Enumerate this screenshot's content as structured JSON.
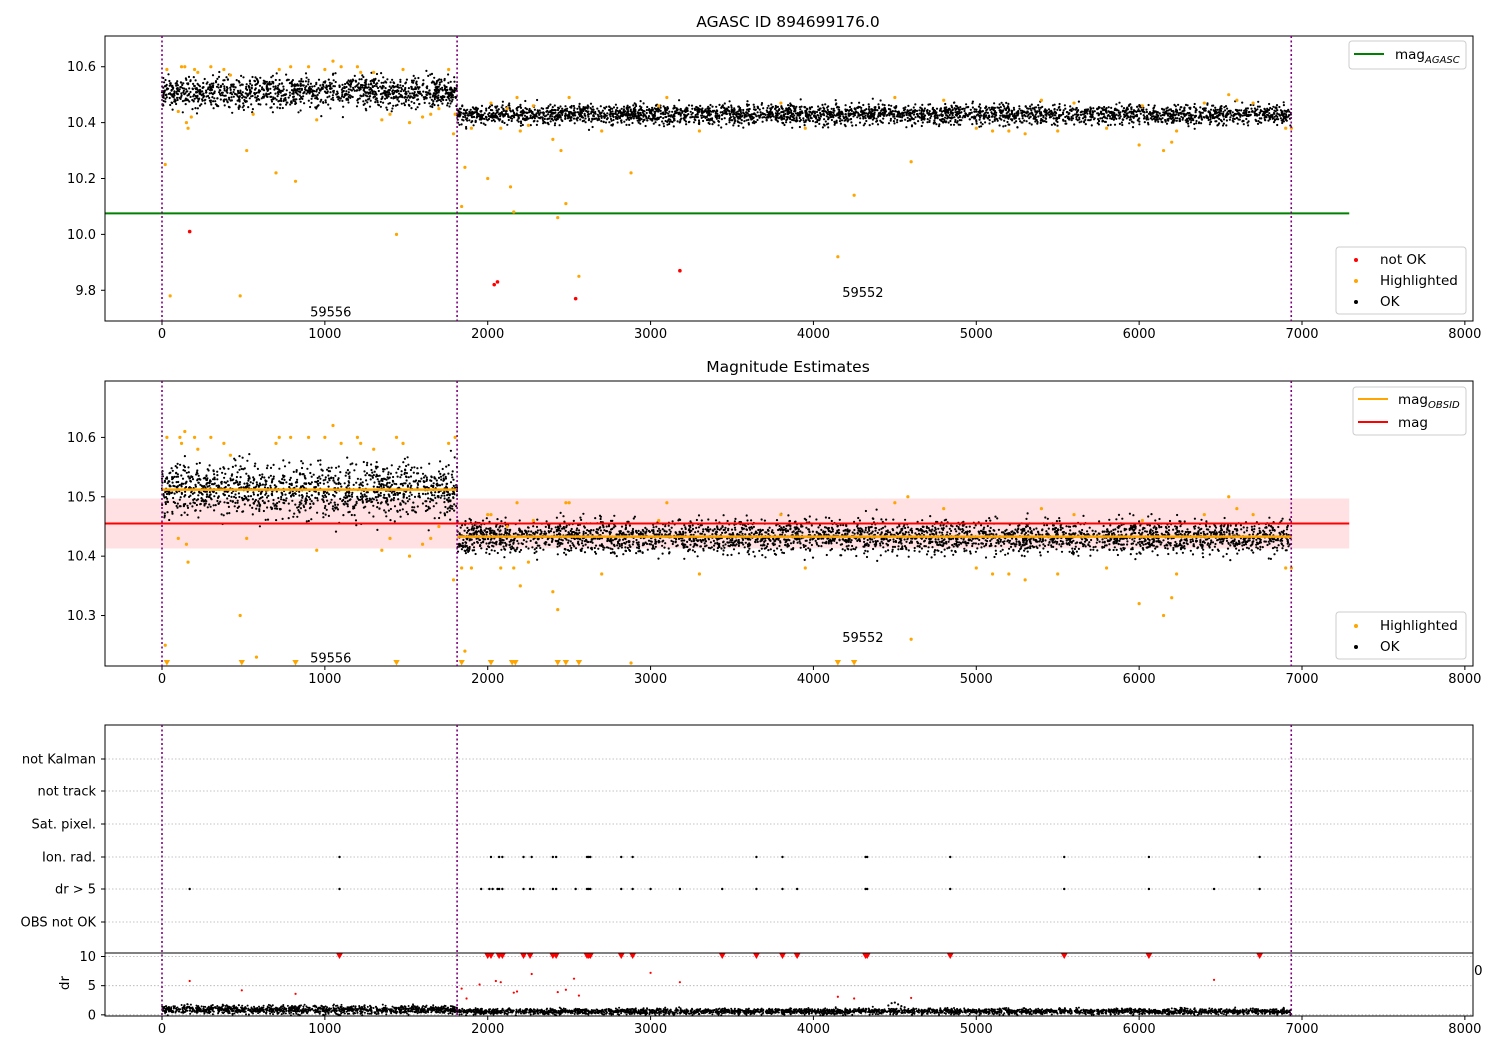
{
  "chart_data": [
    {
      "type": "scatter",
      "title": "AGASC ID 894699176.0",
      "xlabel": "",
      "ylabel": "",
      "xlim": [
        -350,
        8050
      ],
      "ylim": [
        9.69,
        10.71
      ],
      "xticks": [
        0,
        1000,
        2000,
        3000,
        4000,
        5000,
        6000,
        7000,
        8000
      ],
      "xtick_labels": [
        "0",
        "1000",
        "2000",
        "3000",
        "4000",
        "5000",
        "6000",
        "7000",
        "8000"
      ],
      "yticks": [
        9.8,
        10.0,
        10.2,
        10.4,
        10.6
      ],
      "ytick_labels": [
        "9.8",
        "10.0",
        "10.2",
        "10.4",
        "10.6"
      ],
      "grid": false,
      "vlines": [
        0,
        1812,
        6934
      ],
      "obsid_labels": [
        {
          "x": 760,
          "y": 9.72,
          "text": "59556"
        },
        {
          "x": 4230,
          "y": 9.79,
          "text": "59552"
        }
      ],
      "ok_bands": [
        {
          "x0": 0,
          "x1": 1812,
          "center": 10.51,
          "spread": 0.04,
          "n": 1300
        },
        {
          "x0": 1812,
          "x1": 6934,
          "center": 10.43,
          "spread": 0.025,
          "n": 3300
        }
      ],
      "series": [
        {
          "name": "mag_AGASC",
          "type": "line",
          "color": "#008000",
          "x": [
            -350,
            7290
          ],
          "y": [
            10.075,
            10.075
          ]
        },
        {
          "name": "not OK",
          "color": "#ff0000",
          "x": [
            170,
            2040,
            2060,
            2540,
            3180
          ],
          "y": [
            10.01,
            9.82,
            9.83,
            9.77,
            9.87
          ]
        },
        {
          "name": "Highlighted",
          "color": "#ffa500",
          "x": [
            20,
            30,
            50,
            100,
            120,
            140,
            150,
            160,
            180,
            200,
            220,
            300,
            380,
            420,
            480,
            520,
            560,
            700,
            720,
            790,
            820,
            900,
            950,
            1000,
            1050,
            1100,
            1200,
            1220,
            1300,
            1350,
            1400,
            1440,
            1480,
            1520,
            1600,
            1650,
            1700,
            1760,
            1790,
            1800,
            1840,
            1860,
            1900,
            2000,
            2020,
            2080,
            2120,
            2140,
            2160,
            2180,
            2200,
            2250,
            2280,
            2400,
            2430,
            2450,
            2480,
            2500,
            2560,
            2700,
            2880,
            3050,
            3100,
            3300,
            3800,
            3950,
            4150,
            4250,
            4500,
            4600,
            4800,
            5000,
            5100,
            5200,
            5300,
            5400,
            5500,
            5600,
            5800,
            6000,
            6020,
            6150,
            6200,
            6230,
            6400,
            6550,
            6600,
            6700,
            6900,
            6935
          ],
          "y": [
            10.25,
            10.59,
            9.78,
            10.44,
            10.6,
            10.6,
            10.4,
            10.38,
            10.42,
            10.59,
            10.58,
            10.6,
            10.59,
            10.57,
            9.78,
            10.3,
            10.43,
            10.22,
            10.59,
            10.6,
            10.19,
            10.6,
            10.41,
            10.59,
            10.62,
            10.6,
            10.6,
            10.58,
            10.58,
            10.41,
            10.43,
            10.0,
            10.59,
            10.4,
            10.42,
            10.43,
            10.45,
            10.59,
            10.36,
            10.43,
            10.1,
            10.24,
            10.38,
            10.2,
            10.47,
            10.38,
            10.45,
            10.17,
            10.08,
            10.49,
            10.37,
            10.39,
            10.46,
            10.34,
            10.06,
            10.3,
            10.11,
            10.49,
            9.85,
            10.37,
            10.22,
            10.46,
            10.49,
            10.37,
            10.47,
            10.38,
            9.92,
            10.14,
            10.49,
            10.26,
            10.48,
            10.38,
            10.37,
            10.37,
            10.36,
            10.48,
            10.37,
            10.47,
            10.38,
            10.32,
            10.46,
            10.3,
            10.33,
            10.37,
            10.47,
            10.5,
            10.48,
            10.47,
            10.38,
            10.38
          ]
        },
        {
          "name": "OK",
          "color": "#000000",
          "x": [],
          "y": []
        }
      ],
      "legend": [
        {
          "placement": "upper-right",
          "entries": [
            {
              "label": "mag",
              "sub": "AGASC",
              "color": "#008000",
              "kind": "line"
            }
          ]
        },
        {
          "placement": "lower-right",
          "entries": [
            {
              "label": "not OK",
              "color": "#ff0000",
              "kind": "dot"
            },
            {
              "label": "Highlighted",
              "color": "#ffa500",
              "kind": "dot"
            },
            {
              "label": "OK",
              "color": "#000000",
              "kind": "dot"
            }
          ]
        }
      ]
    },
    {
      "type": "scatter",
      "title": "Magnitude Estimates",
      "xlabel": "",
      "ylabel": "",
      "xlim": [
        -350,
        8050
      ],
      "ylim": [
        10.215,
        10.695
      ],
      "xticks": [
        0,
        1000,
        2000,
        3000,
        4000,
        5000,
        6000,
        7000,
        8000
      ],
      "xtick_labels": [
        "0",
        "1000",
        "2000",
        "3000",
        "4000",
        "5000",
        "6000",
        "7000",
        "8000"
      ],
      "yticks": [
        10.3,
        10.4,
        10.5,
        10.6
      ],
      "ytick_labels": [
        "10.3",
        "10.4",
        "10.5",
        "10.6"
      ],
      "grid": false,
      "vlines": [
        0,
        1812,
        6934
      ],
      "obsid_labels": [
        {
          "x": 760,
          "y": 10.228,
          "text": "59556"
        },
        {
          "x": 4230,
          "y": 10.262,
          "text": "59552"
        }
      ],
      "ok_bands": [
        {
          "x0": 0,
          "x1": 1812,
          "center": 10.512,
          "spread": 0.032,
          "n": 1300
        },
        {
          "x0": 1812,
          "x1": 6934,
          "center": 10.433,
          "spread": 0.02,
          "n": 3300
        }
      ],
      "mag": {
        "value": 10.455,
        "lo": 10.413,
        "hi": 10.497,
        "x0": -350,
        "x1": 7290,
        "color": "#ff0000",
        "band_color": "#ffe0e3"
      },
      "mag_obsid": [
        {
          "x0": 0,
          "x1": 1812,
          "value": 10.512
        },
        {
          "x0": 1812,
          "x1": 6934,
          "value": 10.433
        }
      ],
      "series": [
        {
          "name": "Highlighted",
          "color": "#ffa500",
          "x": [
            20,
            30,
            100,
            110,
            120,
            140,
            150,
            160,
            200,
            220,
            300,
            380,
            420,
            480,
            520,
            580,
            700,
            720,
            790,
            900,
            950,
            1000,
            1050,
            1100,
            1200,
            1220,
            1300,
            1350,
            1400,
            1440,
            1480,
            1520,
            1600,
            1650,
            1700,
            1760,
            1790,
            1800,
            1840,
            1860,
            1900,
            2000,
            2020,
            2080,
            2120,
            2160,
            2180,
            2200,
            2250,
            2280,
            2400,
            2430,
            2480,
            2500,
            2700,
            2880,
            3050,
            3100,
            3300,
            3800,
            3950,
            4500,
            4580,
            4600,
            4800,
            5000,
            5100,
            5200,
            5300,
            5400,
            5500,
            5600,
            5800,
            6000,
            6020,
            6150,
            6200,
            6230,
            6400,
            6550,
            6600,
            6700,
            6900,
            6935
          ],
          "y": [
            10.25,
            10.6,
            10.43,
            10.6,
            10.59,
            10.61,
            10.42,
            10.39,
            10.6,
            10.58,
            10.6,
            10.59,
            10.57,
            10.3,
            10.43,
            10.23,
            10.59,
            10.6,
            10.6,
            10.6,
            10.41,
            10.6,
            10.62,
            10.59,
            10.6,
            10.59,
            10.58,
            10.41,
            10.43,
            10.6,
            10.59,
            10.4,
            10.42,
            10.43,
            10.45,
            10.59,
            10.36,
            10.6,
            10.38,
            10.24,
            10.38,
            10.47,
            10.47,
            10.38,
            10.45,
            10.38,
            10.49,
            10.35,
            10.39,
            10.46,
            10.34,
            10.31,
            10.49,
            10.49,
            10.37,
            10.22,
            10.46,
            10.49,
            10.37,
            10.47,
            10.38,
            10.49,
            10.5,
            10.26,
            10.48,
            10.38,
            10.37,
            10.37,
            10.36,
            10.48,
            10.37,
            10.47,
            10.38,
            10.32,
            10.46,
            10.3,
            10.33,
            10.37,
            10.47,
            10.5,
            10.48,
            10.47,
            10.38,
            10.38
          ]
        },
        {
          "name": "Highlighted (below range)",
          "color": "#ffa500",
          "x": [
            30,
            490,
            820,
            1440,
            1840,
            2020,
            2150,
            2170,
            2430,
            2480,
            2560,
            4150,
            4250
          ],
          "y": [
            10.215,
            10.215,
            10.215,
            10.215,
            10.215,
            10.215,
            10.215,
            10.215,
            10.215,
            10.215,
            10.215,
            10.215,
            10.215
          ]
        },
        {
          "name": "OK",
          "color": "#000000",
          "x": [],
          "y": []
        }
      ],
      "legend": [
        {
          "placement": "upper-right",
          "entries": [
            {
              "label": "mag",
              "sub": "OBSID",
              "color": "#ffa500",
              "kind": "line"
            },
            {
              "label": "mag",
              "sub": "",
              "color": "#ff0000",
              "kind": "line"
            }
          ]
        },
        {
          "placement": "lower-right",
          "entries": [
            {
              "label": "Highlighted",
              "color": "#ffa500",
              "kind": "dot"
            },
            {
              "label": "OK",
              "color": "#000000",
              "kind": "dot"
            }
          ]
        }
      ]
    },
    {
      "type": "scatter",
      "title": "",
      "xlabel": "",
      "ylabel": "",
      "xlim": [
        -350,
        8050
      ],
      "categories": [
        "not Kalman",
        "not track",
        "Sat. pixel.",
        "Ion. rad.",
        "dr > 5",
        "OBS not OK"
      ],
      "grid": true,
      "vlines": [
        0,
        1812,
        6934
      ],
      "flags": [
        {
          "category": "not Kalman",
          "x": []
        },
        {
          "category": "not track",
          "x": []
        },
        {
          "category": "Sat. pixel.",
          "x": []
        },
        {
          "category": "Ion. rad.",
          "x": [
            1090,
            2020,
            2070,
            2090,
            2220,
            2270,
            2400,
            2420,
            2610,
            2620,
            2630,
            2820,
            2890,
            3650,
            3810,
            4320,
            4330,
            4840,
            5540,
            6060,
            6740
          ]
        },
        {
          "category": "dr > 5",
          "x": [
            170,
            1090,
            1960,
            2010,
            2030,
            2060,
            2070,
            2090,
            2220,
            2260,
            2280,
            2400,
            2420,
            2540,
            2610,
            2620,
            2630,
            2820,
            2890,
            3000,
            3180,
            3440,
            3650,
            3810,
            3900,
            4320,
            4330,
            4840,
            5540,
            6060,
            6460,
            6740
          ]
        },
        {
          "category": "OBS not OK",
          "x": []
        }
      ],
      "marker_color": "#000000"
    },
    {
      "type": "scatter",
      "title": "",
      "xlabel": "",
      "ylabel": "dr",
      "xlim": [
        -350,
        8050
      ],
      "ylim": [
        -0.2,
        10.6
      ],
      "yticks": [
        0,
        5,
        10
      ],
      "ytick_labels": [
        "0",
        "5",
        "10"
      ],
      "xticks": [
        0,
        1000,
        2000,
        3000,
        4000,
        5000,
        6000,
        7000,
        8000
      ],
      "xtick_labels": [
        "0",
        "1000",
        "2000",
        "3000",
        "4000",
        "5000",
        "6000",
        "7000",
        "8000"
      ],
      "grid": true,
      "vlines": [
        0,
        1812,
        6934
      ],
      "edge_label": "0",
      "ok_bands": [
        {
          "x0": 0,
          "x1": 1812,
          "center": 0.9,
          "spread": 0.5,
          "n": 1200
        },
        {
          "x0": 1812,
          "x1": 6934,
          "center": 0.6,
          "spread": 0.35,
          "n": 3000
        }
      ],
      "series": [
        {
          "name": "above range",
          "color": "#ff0000",
          "marker": "triangle",
          "x": [
            1090,
            2000,
            2020,
            2070,
            2090,
            2220,
            2260,
            2400,
            2420,
            2610,
            2620,
            2630,
            2820,
            2890,
            3440,
            3650,
            3810,
            3900,
            4320,
            4330,
            4840,
            5540,
            6060,
            6740
          ],
          "y": [
            10,
            10,
            10,
            10,
            10,
            10,
            10,
            10,
            10,
            10,
            10,
            10,
            10,
            10,
            10,
            10,
            10,
            10,
            10,
            10,
            10,
            10,
            10,
            10
          ]
        },
        {
          "name": "large dr",
          "color": "#ff0000",
          "marker": "dot",
          "x": [
            170,
            490,
            820,
            1840,
            1870,
            1950,
            2050,
            2080,
            2160,
            2180,
            2270,
            2430,
            2480,
            2530,
            2560,
            3000,
            3180,
            4150,
            4250,
            4600,
            6460
          ],
          "y": [
            5.8,
            4.2,
            3.6,
            4.5,
            2.8,
            5.2,
            5.8,
            5.6,
            3.8,
            4.0,
            7.0,
            3.9,
            4.3,
            6.2,
            3.3,
            7.2,
            5.6,
            3.1,
            2.8,
            2.9,
            6.0
          ]
        },
        {
          "name": "bump",
          "color": "#000000",
          "marker": "dot",
          "x": [
            4460,
            4480,
            4500,
            4520,
            4540,
            4560
          ],
          "y": [
            1.6,
            2.0,
            2.1,
            1.8,
            1.5,
            1.3
          ]
        }
      ]
    }
  ]
}
